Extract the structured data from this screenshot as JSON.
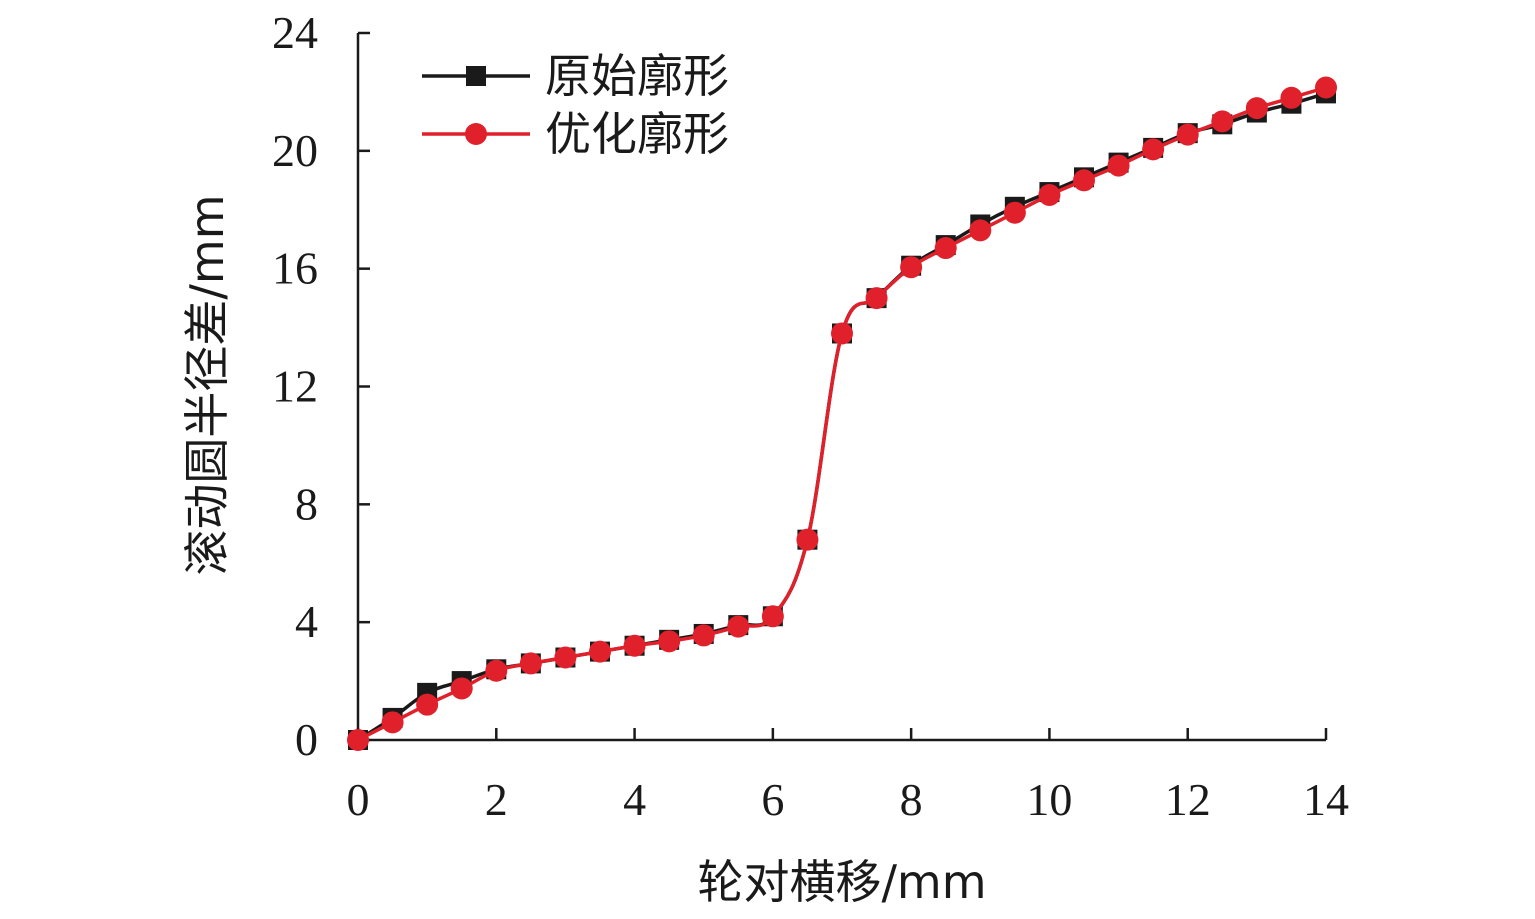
{
  "chart_data": {
    "type": "line",
    "title": "",
    "xlabel": "轮对横移/mm",
    "ylabel": "滚动圆半径差/mm",
    "xlim": [
      0,
      14
    ],
    "ylim": [
      0,
      24
    ],
    "xticks": [
      "0",
      "2",
      "4",
      "6",
      "8",
      "10",
      "12",
      "14"
    ],
    "yticks": [
      "0",
      "4",
      "8",
      "12",
      "16",
      "20",
      "24"
    ],
    "grid": false,
    "legend_position": "top-left",
    "series": [
      {
        "name": "原始廓形",
        "color": "#1a1a1a",
        "marker": "square",
        "x": [
          0,
          0.5,
          1,
          1.5,
          2,
          2.5,
          3,
          3.5,
          4,
          4.5,
          5,
          5.5,
          6,
          6.5,
          7,
          7.5,
          8,
          8.5,
          9,
          9.5,
          10,
          10.5,
          11,
          11.5,
          12,
          12.5,
          13,
          13.5,
          14
        ],
        "y": [
          0,
          0.75,
          1.6,
          2.0,
          2.4,
          2.6,
          2.8,
          3.0,
          3.2,
          3.4,
          3.6,
          3.9,
          4.2,
          6.8,
          13.8,
          15.0,
          16.1,
          16.8,
          17.5,
          18.1,
          18.6,
          19.1,
          19.6,
          20.1,
          20.6,
          20.9,
          21.3,
          21.6,
          21.95
        ]
      },
      {
        "name": "优化廓形",
        "color": "#e0202a",
        "marker": "circle",
        "x": [
          0,
          0.5,
          1,
          1.5,
          2,
          2.5,
          3,
          3.5,
          4,
          4.5,
          5,
          5.5,
          6,
          6.5,
          7,
          7.5,
          8,
          8.5,
          9,
          9.5,
          10,
          10.5,
          11,
          11.5,
          12,
          12.5,
          13,
          13.5,
          14
        ],
        "y": [
          0,
          0.6,
          1.2,
          1.75,
          2.35,
          2.6,
          2.8,
          3.0,
          3.2,
          3.35,
          3.55,
          3.85,
          4.2,
          6.8,
          13.8,
          15.0,
          16.05,
          16.7,
          17.3,
          17.9,
          18.5,
          19.0,
          19.5,
          20.05,
          20.55,
          21.0,
          21.45,
          21.8,
          22.15
        ]
      }
    ]
  }
}
